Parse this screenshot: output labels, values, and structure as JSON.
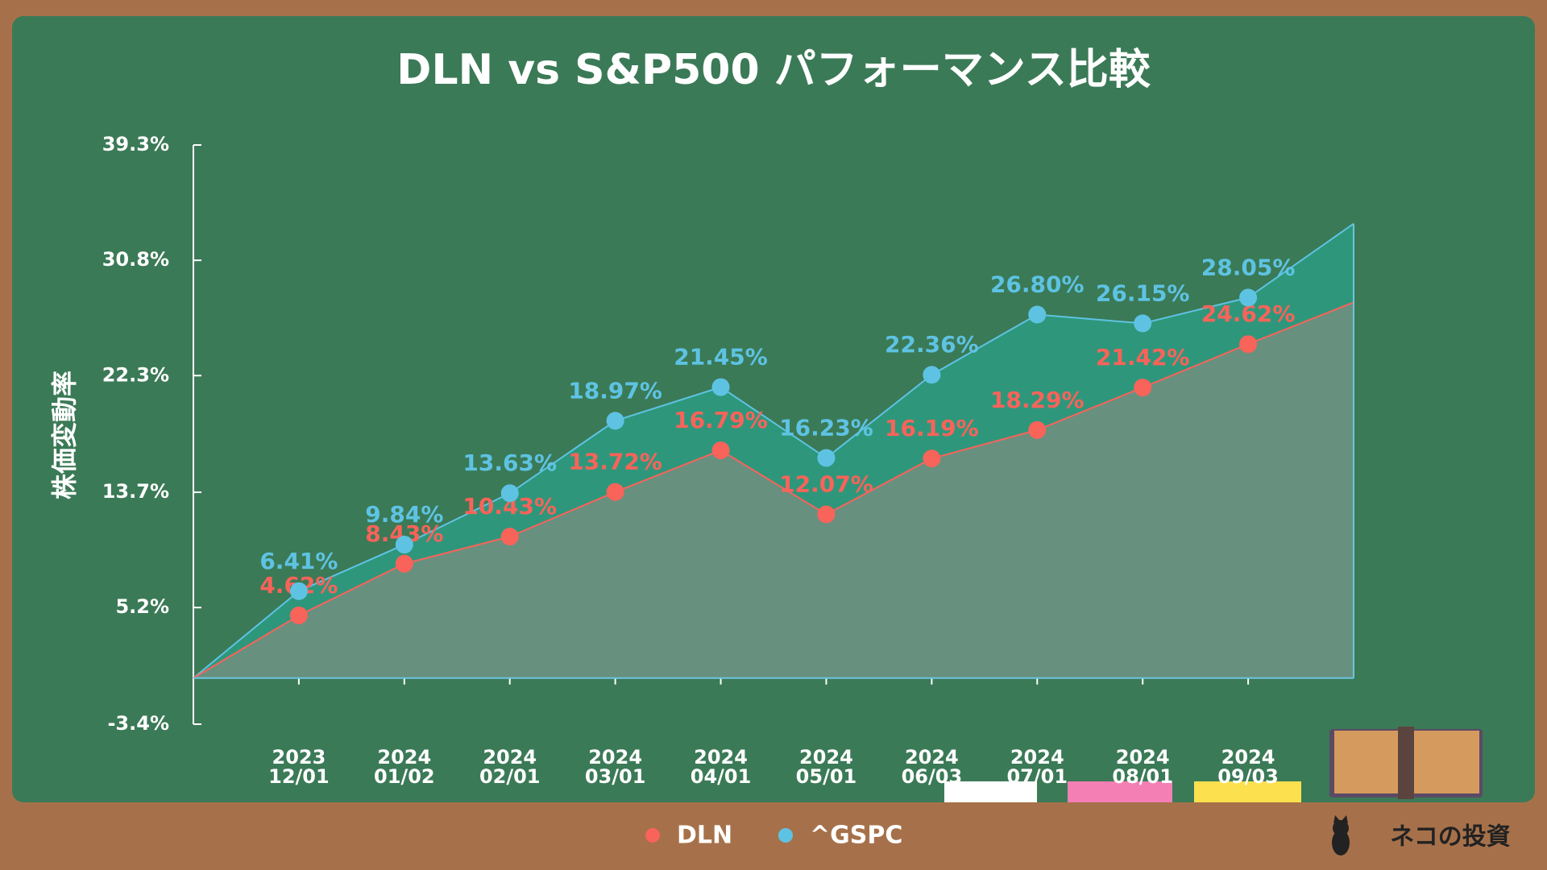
{
  "chart_data": {
    "type": "line",
    "title": "DLN vs S&P500 パフォーマンス比較",
    "y_label": "株価変動率",
    "brand": "ネコの投資",
    "categories": [
      null,
      "2023 12/01",
      "2024 01/02",
      "2024 02/01",
      "2024 03/01",
      "2024 04/01",
      "2024 05/01",
      "2024 06/03",
      "2024 07/01",
      "2024 08/01",
      "2024 09/03",
      null
    ],
    "series": [
      {
        "name": "DLN",
        "color": "#f8635a",
        "area_color": "#6f8f80",
        "values": [
          0,
          4.62,
          8.43,
          10.43,
          13.72,
          16.79,
          12.07,
          16.19,
          18.29,
          21.42,
          24.62,
          27.7
        ],
        "value_labels": [
          null,
          "4.62%",
          "8.43%",
          "10.43%",
          "13.72%",
          "16.79%",
          "12.07%",
          "16.19%",
          "18.29%",
          "21.42%",
          "24.62%",
          null
        ]
      },
      {
        "name": "^GSPC",
        "color": "#5ec3e3",
        "area_color": "#2e9a80",
        "values": [
          0,
          6.41,
          9.84,
          13.63,
          18.97,
          21.45,
          16.23,
          22.36,
          26.8,
          26.15,
          28.05,
          33.5
        ],
        "value_labels": [
          null,
          "6.41%",
          "9.84%",
          "13.63%",
          "18.97%",
          "21.45%",
          "16.23%",
          "22.36%",
          "26.80%",
          "26.15%",
          "28.05%",
          null
        ]
      }
    ],
    "ylim": [
      -3.4,
      39.3
    ],
    "yticks": [
      {
        "value": -3.4,
        "label": "-3.4%"
      },
      {
        "value": 5.2,
        "label": "5.2%"
      },
      {
        "value": 13.7,
        "label": "13.7%"
      },
      {
        "value": 22.3,
        "label": "22.3%"
      },
      {
        "value": 30.8,
        "label": "30.8%"
      },
      {
        "value": 39.3,
        "label": "39.3%"
      }
    ],
    "legend": "bottom"
  }
}
